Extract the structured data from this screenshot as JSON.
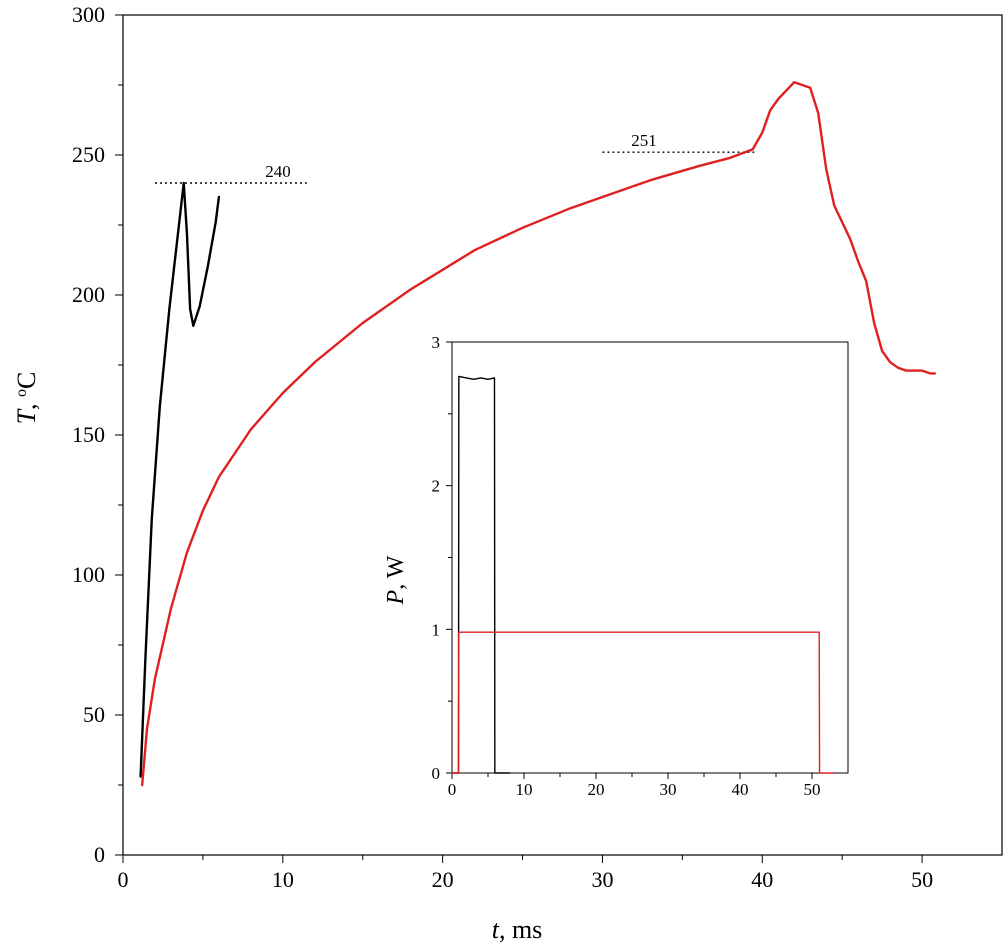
{
  "chart_data": [
    {
      "type": "line",
      "xlabel": {
        "var": "t",
        "rest": ", ms"
      },
      "ylabel": {
        "var": "T",
        "rest": ", ",
        "sup": "o",
        "unit": "C"
      },
      "xlim": [
        0,
        55
      ],
      "ylim": [
        0,
        300
      ],
      "xticks": [
        0,
        10,
        20,
        30,
        40,
        50
      ],
      "yticks": [
        0,
        50,
        100,
        150,
        200,
        250,
        300
      ],
      "grid": false,
      "series": [
        {
          "color": "#000000",
          "points": [
            [
              1.1,
              28
            ],
            [
              1.4,
              70
            ],
            [
              1.8,
              120
            ],
            [
              2.3,
              160
            ],
            [
              2.9,
              195
            ],
            [
              3.5,
              225
            ],
            [
              3.8,
              240
            ],
            [
              4.0,
              222
            ],
            [
              4.2,
              195
            ],
            [
              4.4,
              189
            ],
            [
              4.8,
              196
            ],
            [
              5.3,
              210
            ],
            [
              5.8,
              226
            ],
            [
              6.0,
              235
            ]
          ]
        },
        {
          "color": "#e02020",
          "points": [
            [
              1.2,
              25
            ],
            [
              1.5,
              45
            ],
            [
              2.0,
              63
            ],
            [
              3.0,
              88
            ],
            [
              4.0,
              108
            ],
            [
              5.0,
              123
            ],
            [
              6.0,
              135
            ],
            [
              8.0,
              152
            ],
            [
              10.0,
              165
            ],
            [
              12.0,
              176
            ],
            [
              15.0,
              190
            ],
            [
              18.0,
              202
            ],
            [
              20.0,
              209
            ],
            [
              22.0,
              216
            ],
            [
              25.0,
              224
            ],
            [
              28.0,
              231
            ],
            [
              30.0,
              235
            ],
            [
              33.0,
              241
            ],
            [
              36.0,
              246
            ],
            [
              38.0,
              249
            ],
            [
              39.4,
              252
            ],
            [
              40.0,
              258
            ],
            [
              40.5,
              266
            ],
            [
              41.0,
              270
            ],
            [
              41.5,
              273
            ],
            [
              42.0,
              276
            ],
            [
              42.5,
              275
            ],
            [
              43.0,
              274
            ],
            [
              43.5,
              265
            ],
            [
              44.0,
              245
            ],
            [
              44.5,
              232
            ],
            [
              45.0,
              226
            ],
            [
              45.5,
              220
            ],
            [
              46.0,
              212
            ],
            [
              46.5,
              205
            ],
            [
              47.0,
              190
            ],
            [
              47.5,
              180
            ],
            [
              48.0,
              176
            ],
            [
              48.5,
              174
            ],
            [
              49.0,
              173
            ],
            [
              50.0,
              173
            ],
            [
              50.5,
              172
            ],
            [
              50.8,
              172
            ]
          ]
        }
      ],
      "annotations": [
        {
          "text": "240",
          "y": 240,
          "x_from": 2.0,
          "x_to": 11.5,
          "label_x": 8.9
        },
        {
          "text": "251",
          "y": 251,
          "x_from": 30.0,
          "x_to": 39.5,
          "label_x": 31.8
        }
      ]
    },
    {
      "type": "line",
      "role": "inset",
      "xlabel": "",
      "ylabel": {
        "var": "P",
        "rest": ", W"
      },
      "xlim": [
        0,
        55
      ],
      "ylim": [
        0,
        3
      ],
      "xticks": [
        0,
        10,
        20,
        30,
        40,
        50
      ],
      "yticks": [
        0,
        1,
        2,
        3
      ],
      "grid": false,
      "series": [
        {
          "color": "#000000",
          "points": [
            [
              0,
              0
            ],
            [
              0.9,
              0
            ],
            [
              0.95,
              2.76
            ],
            [
              2.0,
              2.75
            ],
            [
              3.0,
              2.74
            ],
            [
              4.0,
              2.75
            ],
            [
              5.0,
              2.74
            ],
            [
              5.9,
              2.75
            ],
            [
              5.95,
              0
            ],
            [
              8.0,
              0
            ]
          ]
        },
        {
          "color": "#e02020",
          "points": [
            [
              0,
              0
            ],
            [
              0.9,
              0
            ],
            [
              0.95,
              0.98
            ],
            [
              51.0,
              0.98
            ],
            [
              51.05,
              0
            ],
            [
              53.0,
              0
            ]
          ]
        }
      ]
    }
  ]
}
